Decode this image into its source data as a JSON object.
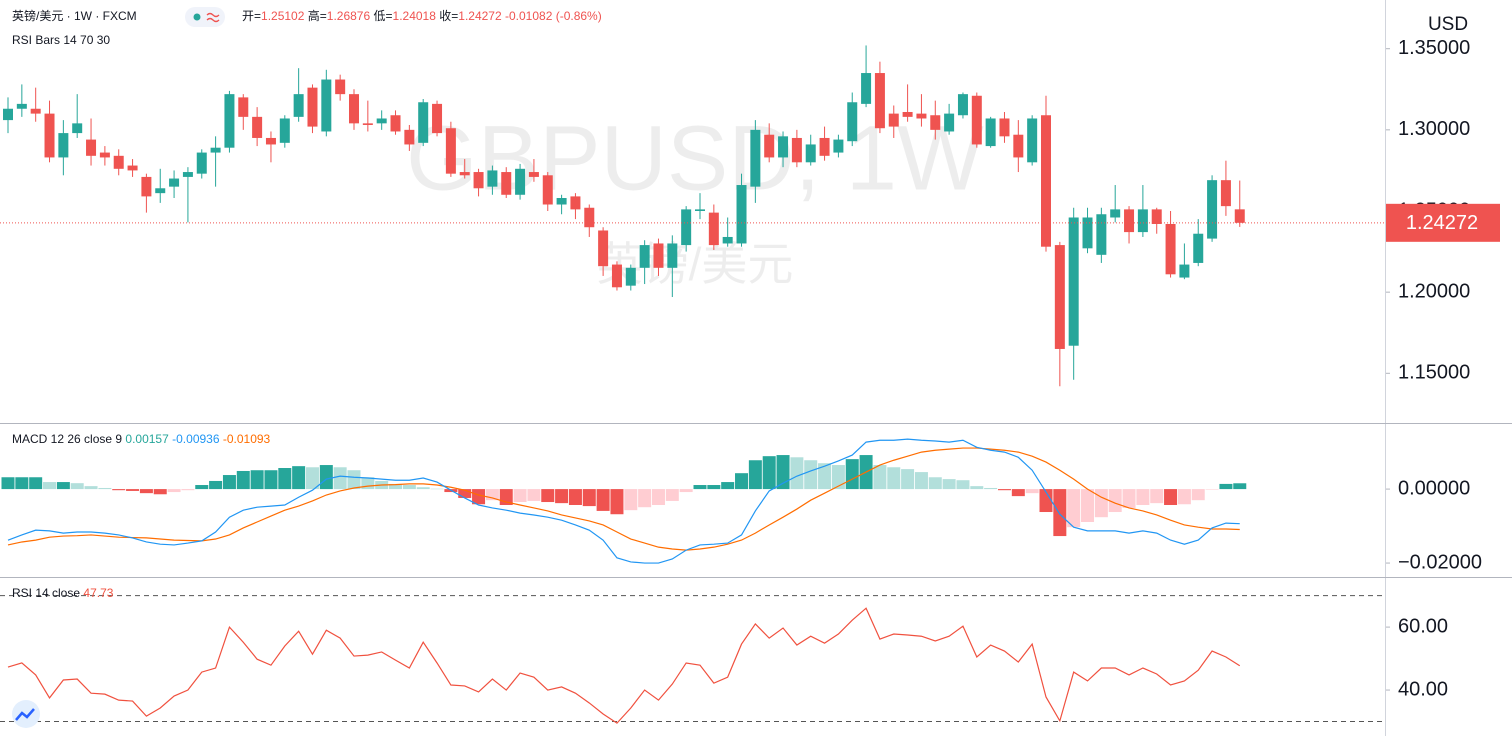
{
  "chart_data": [
    {
      "type": "candlestick",
      "title": "英镑/美元 · 1W · FXCM",
      "indicator": "RSI Bars 14 70 30",
      "ohlc_labels": [
        "开=",
        "高=",
        "低=",
        "收="
      ],
      "change": "-0.01082 (-0.86%)",
      "watermark": "GBPUSD, 1W",
      "watermark_sub": "英镑/美元",
      "currency": "USD",
      "up_color": "#26a69a",
      "down_color": "#ef5350",
      "grid": false,
      "ylim": [
        1.12,
        1.38
      ],
      "yticks": [
        {
          "value": 1.15,
          "label": "1.15000"
        },
        {
          "value": 1.2,
          "label": "1.20000"
        },
        {
          "value": 1.25,
          "label": "1.25000"
        },
        {
          "value": 1.3,
          "label": "1.30000"
        },
        {
          "value": 1.35,
          "label": "1.35000"
        }
      ],
      "open": [
        1.306,
        1.313,
        1.313,
        1.31,
        1.283,
        1.298,
        1.294,
        1.286,
        1.284,
        1.278,
        1.271,
        1.261,
        1.265,
        1.271,
        1.273,
        1.286,
        1.289,
        1.32,
        1.308,
        1.295,
        1.292,
        1.308,
        1.326,
        1.299,
        1.331,
        1.322,
        1.304,
        1.304,
        1.309,
        1.3,
        1.292,
        1.316,
        1.301,
        1.274,
        1.274,
        1.265,
        1.274,
        1.26,
        1.274,
        1.272,
        1.254,
        1.259,
        1.252,
        1.238,
        1.217,
        1.204,
        1.215,
        1.23,
        1.215,
        1.229,
        1.25,
        1.249,
        1.23,
        1.23,
        1.265,
        1.297,
        1.283,
        1.295,
        1.28,
        1.295,
        1.286,
        1.293,
        1.316,
        1.335,
        1.31,
        1.311,
        1.31,
        1.309,
        1.299,
        1.309,
        1.321,
        1.29,
        1.307,
        1.297,
        1.28,
        1.309,
        1.229,
        1.167,
        1.227,
        1.223,
        1.246,
        1.251,
        1.237,
        1.251,
        1.242,
        1.209,
        1.218,
        1.233,
        1.269,
        1.25102
      ],
      "high": [
        1.32,
        1.328,
        1.326,
        1.318,
        1.306,
        1.322,
        1.307,
        1.29,
        1.288,
        1.282,
        1.273,
        1.276,
        1.275,
        1.277,
        1.288,
        1.296,
        1.324,
        1.322,
        1.314,
        1.299,
        1.309,
        1.338,
        1.328,
        1.337,
        1.334,
        1.325,
        1.318,
        1.312,
        1.312,
        1.303,
        1.319,
        1.318,
        1.305,
        1.282,
        1.276,
        1.278,
        1.277,
        1.279,
        1.282,
        1.274,
        1.26,
        1.261,
        1.254,
        1.24,
        1.219,
        1.217,
        1.232,
        1.233,
        1.235,
        1.253,
        1.261,
        1.254,
        1.246,
        1.273,
        1.306,
        1.304,
        1.299,
        1.3,
        1.297,
        1.302,
        1.297,
        1.323,
        1.352,
        1.342,
        1.315,
        1.328,
        1.322,
        1.318,
        1.316,
        1.323,
        1.323,
        1.308,
        1.311,
        1.306,
        1.309,
        1.321,
        1.231,
        1.252,
        1.252,
        1.252,
        1.266,
        1.253,
        1.266,
        1.252,
        1.25,
        1.23,
        1.245,
        1.272,
        1.281,
        1.26876
      ],
      "low": [
        1.298,
        1.308,
        1.305,
        1.28,
        1.272,
        1.295,
        1.278,
        1.278,
        1.272,
        1.271,
        1.249,
        1.255,
        1.258,
        1.243,
        1.27,
        1.265,
        1.286,
        1.3,
        1.29,
        1.28,
        1.289,
        1.305,
        1.298,
        1.296,
        1.318,
        1.3,
        1.299,
        1.3,
        1.297,
        1.287,
        1.29,
        1.296,
        1.271,
        1.27,
        1.259,
        1.26,
        1.258,
        1.257,
        1.268,
        1.25,
        1.248,
        1.245,
        1.234,
        1.21,
        1.201,
        1.201,
        1.205,
        1.21,
        1.197,
        1.225,
        1.245,
        1.226,
        1.228,
        1.228,
        1.255,
        1.28,
        1.277,
        1.277,
        1.278,
        1.281,
        1.283,
        1.29,
        1.314,
        1.298,
        1.295,
        1.305,
        1.302,
        1.294,
        1.297,
        1.307,
        1.289,
        1.289,
        1.292,
        1.274,
        1.278,
        1.225,
        1.142,
        1.146,
        1.224,
        1.218,
        1.243,
        1.23,
        1.234,
        1.236,
        1.209,
        1.208,
        1.216,
        1.231,
        1.247,
        1.24018
      ],
      "close": [
        1.313,
        1.316,
        1.31,
        1.283,
        1.298,
        1.304,
        1.284,
        1.283,
        1.276,
        1.275,
        1.259,
        1.264,
        1.27,
        1.274,
        1.286,
        1.289,
        1.322,
        1.308,
        1.295,
        1.291,
        1.307,
        1.322,
        1.302,
        1.331,
        1.322,
        1.304,
        1.303,
        1.307,
        1.299,
        1.291,
        1.317,
        1.298,
        1.273,
        1.272,
        1.264,
        1.275,
        1.26,
        1.276,
        1.271,
        1.254,
        1.258,
        1.251,
        1.24,
        1.216,
        1.203,
        1.215,
        1.229,
        1.215,
        1.23,
        1.251,
        1.251,
        1.229,
        1.234,
        1.266,
        1.3,
        1.283,
        1.296,
        1.28,
        1.291,
        1.284,
        1.294,
        1.317,
        1.335,
        1.301,
        1.302,
        1.308,
        1.307,
        1.3,
        1.31,
        1.322,
        1.291,
        1.307,
        1.296,
        1.283,
        1.307,
        1.228,
        1.165,
        1.246,
        1.246,
        1.248,
        1.251,
        1.237,
        1.251,
        1.242,
        1.211,
        1.217,
        1.236,
        1.269,
        1.253,
        1.24272
      ]
    },
    {
      "type": "macd",
      "title": "MACD 12 26 close 9",
      "ylim": [
        -0.0235,
        0.0176
      ],
      "yticks": [
        {
          "value": -0.02,
          "label": "−0.02000"
        },
        {
          "value": 0,
          "label": "0.00000"
        }
      ],
      "histogram": {
        "colors": [
          "#26a69a",
          "#b2dfdb",
          "#ef5350",
          "#ffcdd2"
        ],
        "values": [
          0.0032,
          0.0032,
          0.0032,
          0.0019,
          0.0019,
          0.0016,
          0.0008,
          0.0003,
          -0.0003,
          -0.0005,
          -0.0011,
          -0.0014,
          -0.0008,
          -0.0003,
          0.0011,
          0.0022,
          0.0038,
          0.0049,
          0.0051,
          0.0051,
          0.0057,
          0.0062,
          0.0059,
          0.0065,
          0.0059,
          0.0051,
          0.0032,
          0.0022,
          0.0014,
          0.0011,
          0.0005,
          0.0001,
          -0.0008,
          -0.0024,
          -0.0041,
          -0.003,
          -0.0043,
          -0.0035,
          -0.0032,
          -0.0035,
          -0.0038,
          -0.0043,
          -0.0046,
          -0.0059,
          -0.0068,
          -0.0057,
          -0.0049,
          -0.0043,
          -0.0032,
          -0.0008,
          0.0011,
          0.0011,
          0.0019,
          0.0043,
          0.0078,
          0.0089,
          0.0092,
          0.0086,
          0.0078,
          0.007,
          0.0065,
          0.0081,
          0.0092,
          0.0065,
          0.0059,
          0.0054,
          0.0046,
          0.0032,
          0.0027,
          0.0024,
          0.0008,
          0.0003,
          -0.0003,
          -0.0019,
          -0.0011,
          -0.0062,
          -0.0127,
          -0.0103,
          -0.0089,
          -0.0076,
          -0.0062,
          -0.0051,
          -0.0043,
          -0.0038,
          -0.0043,
          -0.0041,
          -0.003,
          -0.0001,
          0.0014,
          0.00157
        ]
      },
      "macd": {
        "color": "#2196f3",
        "values": [
          -0.0138,
          -0.0124,
          -0.0111,
          -0.0113,
          -0.0119,
          -0.0116,
          -0.0116,
          -0.0119,
          -0.0124,
          -0.0132,
          -0.0143,
          -0.0149,
          -0.0151,
          -0.0146,
          -0.014,
          -0.0116,
          -0.0076,
          -0.0057,
          -0.0049,
          -0.0046,
          -0.0043,
          -0.0022,
          -0.0003,
          0.0027,
          0.0035,
          0.0032,
          0.003,
          0.0027,
          0.0024,
          0.0024,
          0.003,
          0.0019,
          -0.0003,
          -0.0024,
          -0.0043,
          -0.0051,
          -0.0057,
          -0.0065,
          -0.007,
          -0.0076,
          -0.0084,
          -0.0097,
          -0.0111,
          -0.0138,
          -0.0186,
          -0.0197,
          -0.02,
          -0.02,
          -0.0189,
          -0.0165,
          -0.0151,
          -0.0149,
          -0.0146,
          -0.0124,
          -0.0059,
          -0.0005,
          0.0016,
          0.0035,
          0.0049,
          0.0062,
          0.0076,
          0.0092,
          0.0127,
          0.0132,
          0.0132,
          0.0135,
          0.0132,
          0.013,
          0.0127,
          0.0132,
          0.0113,
          0.0105,
          0.01,
          0.0086,
          0.0051,
          -0.0008,
          -0.0068,
          -0.0103,
          -0.0113,
          -0.0113,
          -0.0113,
          -0.0119,
          -0.0113,
          -0.0119,
          -0.0138,
          -0.0149,
          -0.0138,
          -0.0105,
          -0.0092,
          -0.00936
        ]
      },
      "signal": {
        "color": "#ff6d00",
        "values": [
          -0.0151,
          -0.0143,
          -0.0138,
          -0.013,
          -0.0127,
          -0.0126,
          -0.0124,
          -0.0127,
          -0.013,
          -0.0131,
          -0.0132,
          -0.0135,
          -0.0138,
          -0.0139,
          -0.014,
          -0.0135,
          -0.0124,
          -0.0105,
          -0.0089,
          -0.0073,
          -0.0057,
          -0.0046,
          -0.0032,
          -0.0016,
          -0.0005,
          0.0003,
          0.0008,
          0.0011,
          0.0012,
          0.0014,
          0.0014,
          0.0011,
          0.0005,
          -0.0003,
          -0.0016,
          -0.0024,
          -0.0035,
          -0.0043,
          -0.0051,
          -0.0059,
          -0.007,
          -0.0078,
          -0.0086,
          -0.0097,
          -0.0116,
          -0.0135,
          -0.0146,
          -0.0157,
          -0.0162,
          -0.0165,
          -0.0162,
          -0.0157,
          -0.0149,
          -0.0138,
          -0.0119,
          -0.0097,
          -0.0076,
          -0.0054,
          -0.003,
          -0.0011,
          0.0008,
          0.0027,
          0.0046,
          0.0065,
          0.0078,
          0.0089,
          0.01,
          0.0105,
          0.0108,
          0.0111,
          0.0111,
          0.0108,
          0.0105,
          0.01,
          0.0089,
          0.0073,
          0.0051,
          0.0027,
          0.0,
          -0.0022,
          -0.0038,
          -0.0051,
          -0.0059,
          -0.007,
          -0.0084,
          -0.0097,
          -0.0103,
          -0.0108,
          -0.0108,
          -0.01093
        ]
      }
    },
    {
      "type": "line",
      "title": "RSI 14 close",
      "color": "#f0513f",
      "ylim": [
        25.4,
        75.6
      ],
      "levels": [
        30,
        70
      ],
      "yticks": [
        {
          "value": 40,
          "label": "40.00"
        },
        {
          "value": 60,
          "label": "60.00"
        }
      ],
      "values": [
        47.3,
        48.6,
        44.8,
        37.5,
        43.2,
        43.5,
        39.0,
        38.7,
        36.8,
        36.5,
        31.7,
        34.3,
        38.1,
        40.0,
        45.7,
        47.0,
        60.0,
        55.2,
        49.8,
        47.9,
        54.0,
        58.7,
        51.4,
        59.0,
        56.5,
        50.8,
        51.1,
        52.1,
        49.5,
        47.0,
        55.2,
        48.6,
        41.6,
        41.3,
        39.4,
        43.5,
        40.0,
        45.4,
        44.1,
        40.0,
        41.0,
        39.0,
        35.9,
        32.4,
        29.5,
        34.3,
        40.0,
        36.8,
        41.9,
        48.6,
        47.9,
        42.2,
        44.1,
        54.6,
        61.0,
        56.5,
        59.7,
        54.3,
        57.1,
        54.9,
        57.8,
        62.2,
        66.0,
        56.2,
        57.8,
        57.5,
        57.1,
        55.6,
        57.1,
        60.3,
        50.5,
        54.3,
        52.4,
        48.9,
        54.6,
        37.8,
        30.2,
        45.7,
        42.9,
        47.0,
        47.0,
        44.8,
        47.0,
        45.1,
        41.6,
        42.9,
        46.3,
        52.4,
        50.5,
        47.73
      ]
    }
  ]
}
